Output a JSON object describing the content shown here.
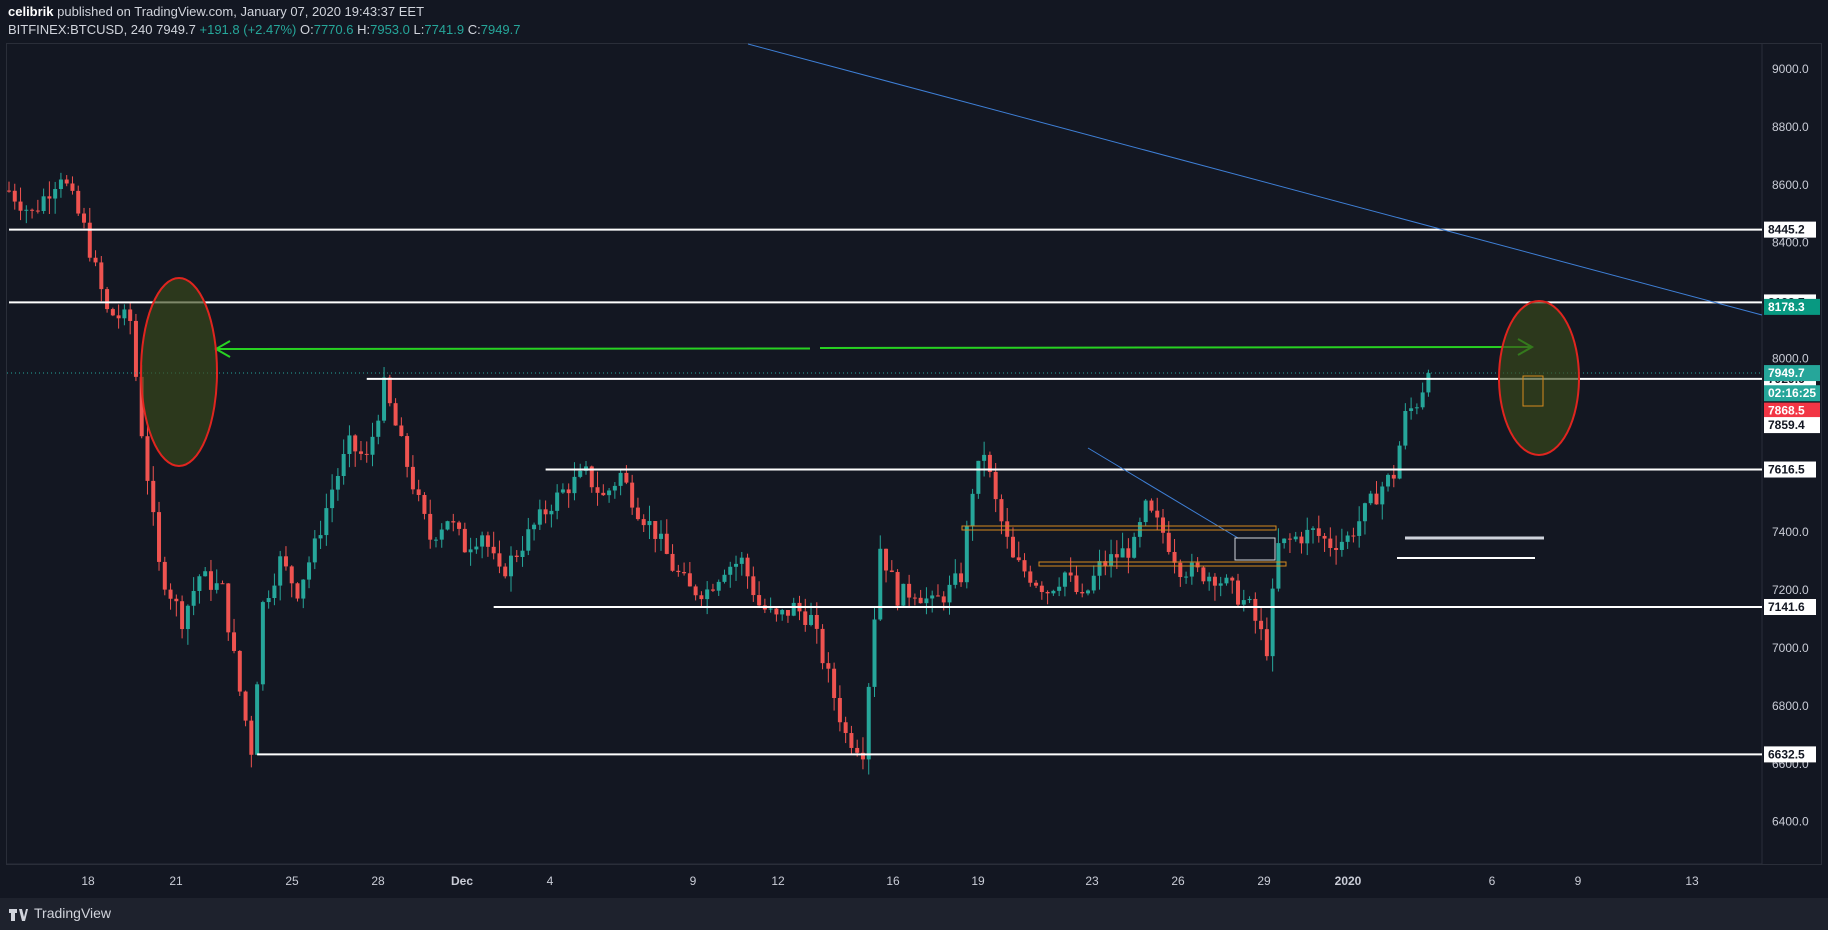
{
  "header": {
    "publisher_user": "celibrik",
    "publisher_rest": " published on TradingView.com, January 07, 2020 19:43:37 EET",
    "symbol": "BITFINEX:BTCUSD, 240",
    "last": "7949.7",
    "change": "+191.8 (+2.47%)",
    "o_label": "O:",
    "o": "7770.6",
    "h_label": "H:",
    "h": "7953.0",
    "l_label": "L:",
    "l": "7741.9",
    "c_label": "C:",
    "c": "7949.7"
  },
  "footer": {
    "brand": "TradingView"
  },
  "colors": {
    "background": "#131722",
    "up": "#26a69a",
    "down": "#ef5350",
    "level_line": "#ffffff",
    "trend_line": "#3e7fd6",
    "arrow": "#28d222",
    "ellipse": "#e0251f",
    "ellipse_fill": "#3a4a1a",
    "orange_box": "#d68a1e"
  },
  "chart_data": {
    "type": "candlestick",
    "symbol": "BITFINEX:BTCUSD",
    "timeframe": "240",
    "x_ticks": [
      "18",
      "21",
      "25",
      "28",
      "Dec",
      "4",
      "9",
      "12",
      "16",
      "19",
      "23",
      "26",
      "29",
      "2020",
      "6",
      "9",
      "13"
    ],
    "y_ticks": [
      "9000.0",
      "8800.0",
      "8600.0",
      "8400.0",
      "8200.0",
      "8000.0",
      "7400.0",
      "7200.0",
      "7000.0",
      "6800.0",
      "6600.0",
      "6400.0"
    ],
    "ylim": [
      6270,
      9110
    ],
    "price_waypoints": [
      [
        0,
        8580
      ],
      [
        4,
        8500
      ],
      [
        9,
        8640
      ],
      [
        13,
        8450
      ],
      [
        17,
        8160
      ],
      [
        21,
        8130
      ],
      [
        23,
        7750
      ],
      [
        26,
        7280
      ],
      [
        30,
        7100
      ],
      [
        33,
        7250
      ],
      [
        37,
        7200
      ],
      [
        40,
        6850
      ],
      [
        42,
        6650
      ],
      [
        44,
        7150
      ],
      [
        47,
        7300
      ],
      [
        50,
        7200
      ],
      [
        53,
        7350
      ],
      [
        56,
        7550
      ],
      [
        59,
        7700
      ],
      [
        62,
        7650
      ],
      [
        65,
        7900
      ],
      [
        68,
        7700
      ],
      [
        71,
        7500
      ],
      [
        73,
        7380
      ],
      [
        76,
        7450
      ],
      [
        79,
        7350
      ],
      [
        82,
        7400
      ],
      [
        85,
        7250
      ],
      [
        88,
        7330
      ],
      [
        91,
        7420
      ],
      [
        94,
        7500
      ],
      [
        97,
        7560
      ],
      [
        100,
        7600
      ],
      [
        103,
        7520
      ],
      [
        106,
        7600
      ],
      [
        109,
        7480
      ],
      [
        112,
        7400
      ],
      [
        115,
        7280
      ],
      [
        118,
        7200
      ],
      [
        121,
        7200
      ],
      [
        124,
        7280
      ],
      [
        127,
        7300
      ],
      [
        130,
        7150
      ],
      [
        133,
        7100
      ],
      [
        136,
        7140
      ],
      [
        139,
        7100
      ],
      [
        142,
        6900
      ],
      [
        145,
        6700
      ],
      [
        148,
        6650
      ],
      [
        151,
        7350
      ],
      [
        154,
        7180
      ],
      [
        157,
        7200
      ],
      [
        160,
        7150
      ],
      [
        163,
        7200
      ],
      [
        165,
        7250
      ],
      [
        167,
        7550
      ],
      [
        169,
        7680
      ],
      [
        171,
        7500
      ],
      [
        174,
        7300
      ],
      [
        177,
        7250
      ],
      [
        180,
        7200
      ],
      [
        183,
        7260
      ],
      [
        186,
        7160
      ],
      [
        189,
        7280
      ],
      [
        192,
        7320
      ],
      [
        195,
        7350
      ],
      [
        197,
        7480
      ],
      [
        200,
        7400
      ],
      [
        203,
        7280
      ],
      [
        206,
        7260
      ],
      [
        209,
        7250
      ],
      [
        212,
        7200
      ],
      [
        215,
        7140
      ],
      [
        218,
        7000
      ],
      [
        220,
        7350
      ],
      [
        223,
        7380
      ],
      [
        226,
        7400
      ],
      [
        229,
        7360
      ],
      [
        232,
        7380
      ],
      [
        235,
        7470
      ],
      [
        238,
        7560
      ],
      [
        240,
        7600
      ],
      [
        242,
        7800
      ],
      [
        244,
        7850
      ],
      [
        246,
        7949.7
      ]
    ],
    "levels": [
      {
        "price": 8445.2,
        "label": "8445.2",
        "from_candle": 0
      },
      {
        "price": 8193.7,
        "label": "8193.7",
        "from_candle": 0
      },
      {
        "price": 7929.6,
        "label": "7929.6",
        "from_candle": 62
      },
      {
        "price": 7616.5,
        "label": "7616.5",
        "from_candle": 93
      },
      {
        "price": 7141.6,
        "label": "7141.6",
        "from_candle": 84
      },
      {
        "price": 6632.5,
        "label": "6632.5",
        "from_candle": 43
      }
    ],
    "price_badges": [
      {
        "label": "8178.3",
        "price": 8178.3,
        "bg": "#089981",
        "fg": "#ffffff"
      },
      {
        "label": "7949.7",
        "price": 7949.7,
        "bg": "#26a69a",
        "fg": "#ffffff"
      },
      {
        "label": "02:16:25",
        "price": 7880,
        "bg": "#26a69a",
        "fg": "#ffffff"
      },
      {
        "label": "7868.5",
        "price": 7820,
        "bg": "#f23645",
        "fg": "#ffffff"
      },
      {
        "label": "7859.4",
        "price": 7770,
        "bg": "#ffffff",
        "fg": "#131722"
      }
    ],
    "candle_count": 256,
    "current_price": 7949.7
  }
}
